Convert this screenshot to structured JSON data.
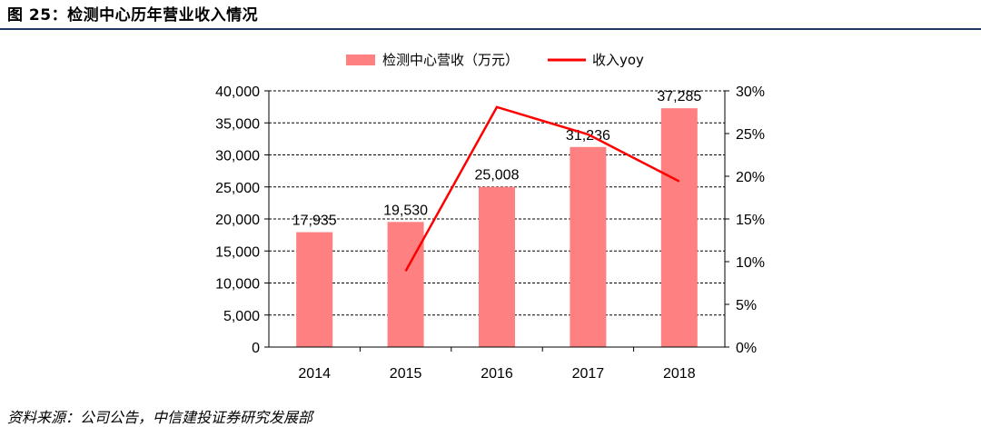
{
  "title": "图 25：检测中心历年营业收入情况",
  "source": "资料来源：公司公告，中信建投证券研究发展部",
  "colors": {
    "bar": "#ff8080",
    "line": "#ff0000",
    "rule": "#1f3864"
  },
  "chart_data": {
    "type": "bar",
    "categories": [
      "2014",
      "2015",
      "2016",
      "2017",
      "2018"
    ],
    "series": [
      {
        "name": "检测中心营收（万元）",
        "type": "bar",
        "axis": "left",
        "values": [
          17935,
          19530,
          25008,
          31236,
          37285
        ],
        "labels": [
          "17,935",
          "19,530",
          "25,008",
          "31,236",
          "37,285"
        ]
      },
      {
        "name": "收入yoy",
        "type": "line",
        "axis": "right",
        "values": [
          null,
          8.9,
          28.1,
          24.9,
          19.4
        ]
      }
    ],
    "left_axis": {
      "ylim": [
        0,
        40000
      ],
      "ticks": [
        "0",
        "5,000",
        "10,000",
        "15,000",
        "20,000",
        "25,000",
        "30,000",
        "35,000",
        "40,000"
      ]
    },
    "right_axis": {
      "ylim": [
        0,
        30
      ],
      "ticks": [
        "0%",
        "5%",
        "10%",
        "15%",
        "20%",
        "25%",
        "30%"
      ]
    },
    "grid": true,
    "legend": "top-center"
  }
}
